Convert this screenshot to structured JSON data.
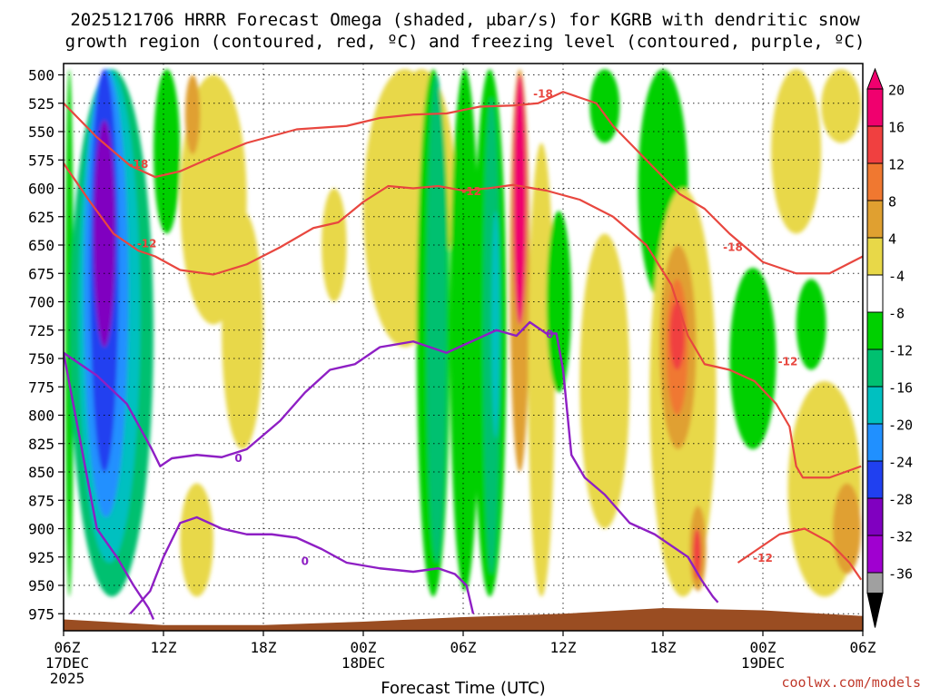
{
  "chart_data": {
    "type": "heatmap",
    "title_lines": [
      "2025121706 HRRR Forecast Omega (shaded, μbar/s) for KGRB with dendritic snow",
      "growth region (contoured, red, ºC) and freezing level (contoured, purple, ºC)"
    ],
    "xlabel": "Forecast Time (UTC)",
    "ylabel": "",
    "credit": "coolwx.com/models",
    "x_ticks": [
      {
        "hour": 0,
        "label": "06Z",
        "sub": "17DEC",
        "sub2": "2025"
      },
      {
        "hour": 6,
        "label": "12Z",
        "sub": "",
        "sub2": ""
      },
      {
        "hour": 12,
        "label": "18Z",
        "sub": "",
        "sub2": ""
      },
      {
        "hour": 18,
        "label": "00Z",
        "sub": "18DEC",
        "sub2": ""
      },
      {
        "hour": 24,
        "label": "06Z",
        "sub": "",
        "sub2": ""
      },
      {
        "hour": 30,
        "label": "12Z",
        "sub": "",
        "sub2": ""
      },
      {
        "hour": 36,
        "label": "18Z",
        "sub": "",
        "sub2": ""
      },
      {
        "hour": 42,
        "label": "00Z",
        "sub": "19DEC",
        "sub2": ""
      },
      {
        "hour": 48,
        "label": "06Z",
        "sub": "",
        "sub2": ""
      }
    ],
    "x_range_hours": [
      0,
      48
    ],
    "y_ticks_hpa": [
      500,
      525,
      550,
      575,
      600,
      625,
      650,
      675,
      700,
      725,
      750,
      775,
      800,
      825,
      850,
      875,
      900,
      925,
      950,
      975
    ],
    "y_range_hpa": [
      490,
      990
    ],
    "colorbar": {
      "labels": [
        "20",
        "16",
        "12",
        "8",
        "4",
        "-4",
        "-8",
        "-12",
        "-16",
        "-20",
        "-24",
        "-28",
        "-32",
        "-36"
      ],
      "bins": [
        {
          "color": "#f0006e"
        },
        {
          "color": "#f04040"
        },
        {
          "color": "#f07830"
        },
        {
          "color": "#e0a030"
        },
        {
          "color": "#e8d848"
        },
        {
          "color": "#ffffff"
        },
        {
          "color": "#00d000"
        },
        {
          "color": "#00c070"
        },
        {
          "color": "#00c0c0"
        },
        {
          "color": "#2090ff"
        },
        {
          "color": "#2040f0"
        },
        {
          "color": "#8000c0"
        },
        {
          "color": "#a000d0"
        },
        {
          "color": "#a0a0a0"
        }
      ]
    },
    "omega_features": [
      {
        "t0": 0.1,
        "t1": 0.6,
        "p0": 495,
        "p1": 960,
        "value": -8
      },
      {
        "t0": 0.4,
        "t1": 5.4,
        "p0": 495,
        "p1": 960,
        "value": -12
      },
      {
        "t0": 0.9,
        "t1": 4.6,
        "p0": 495,
        "p1": 930,
        "value": -16
      },
      {
        "t0": 1.2,
        "t1": 3.9,
        "p0": 495,
        "p1": 890,
        "value": -20
      },
      {
        "t0": 1.6,
        "t1": 3.3,
        "p0": 495,
        "p1": 850,
        "value": -24
      },
      {
        "t0": 1.8,
        "t1": 3.1,
        "p0": 540,
        "p1": 740,
        "value": -28
      },
      {
        "t0": 5.4,
        "t1": 7.0,
        "p0": 495,
        "p1": 640,
        "value": -8
      },
      {
        "t0": 7.0,
        "t1": 11.0,
        "p0": 500,
        "p1": 720,
        "value": 4
      },
      {
        "t0": 7.3,
        "t1": 8.2,
        "p0": 500,
        "p1": 570,
        "value": 8
      },
      {
        "t0": 7.0,
        "t1": 9.0,
        "p0": 860,
        "p1": 960,
        "value": 4
      },
      {
        "t0": 9.5,
        "t1": 12.0,
        "p0": 620,
        "p1": 830,
        "value": 4
      },
      {
        "t0": 15.5,
        "t1": 17.0,
        "p0": 600,
        "p1": 700,
        "value": 4
      },
      {
        "t0": 18.0,
        "t1": 23.0,
        "p0": 495,
        "p1": 740,
        "value": 4
      },
      {
        "t0": 19.5,
        "t1": 23.5,
        "p0": 495,
        "p1": 700,
        "value": 4
      },
      {
        "t0": 21.2,
        "t1": 23.2,
        "p0": 495,
        "p1": 960,
        "value": -8
      },
      {
        "t0": 21.8,
        "t1": 23.0,
        "p0": 500,
        "p1": 930,
        "value": -12
      },
      {
        "t0": 23.2,
        "t1": 25.0,
        "p0": 495,
        "p1": 955,
        "value": -8
      },
      {
        "t0": 24.6,
        "t1": 26.6,
        "p0": 495,
        "p1": 960,
        "value": -8
      },
      {
        "t0": 25.2,
        "t1": 26.2,
        "p0": 520,
        "p1": 940,
        "value": -12
      },
      {
        "t0": 25.7,
        "t1": 26.2,
        "p0": 620,
        "p1": 820,
        "value": -16
      },
      {
        "t0": 26.8,
        "t1": 28.0,
        "p0": 495,
        "p1": 850,
        "value": 8
      },
      {
        "t0": 27.0,
        "t1": 27.8,
        "p0": 500,
        "p1": 720,
        "value": 20
      },
      {
        "t0": 27.9,
        "t1": 29.5,
        "p0": 560,
        "p1": 960,
        "value": 4
      },
      {
        "t0": 29.0,
        "t1": 30.5,
        "p0": 620,
        "p1": 780,
        "value": -8
      },
      {
        "t0": 31.0,
        "t1": 34.0,
        "p0": 640,
        "p1": 900,
        "value": 4
      },
      {
        "t0": 31.6,
        "t1": 33.4,
        "p0": 495,
        "p1": 560,
        "value": -8
      },
      {
        "t0": 34.5,
        "t1": 37.5,
        "p0": 495,
        "p1": 700,
        "value": -8
      },
      {
        "t0": 35.2,
        "t1": 39.2,
        "p0": 600,
        "p1": 960,
        "value": 4
      },
      {
        "t0": 35.8,
        "t1": 38.0,
        "p0": 650,
        "p1": 830,
        "value": 8
      },
      {
        "t0": 36.2,
        "t1": 37.5,
        "p0": 680,
        "p1": 800,
        "value": 12
      },
      {
        "t0": 36.4,
        "t1": 37.3,
        "p0": 700,
        "p1": 760,
        "value": 16
      },
      {
        "t0": 37.6,
        "t1": 38.6,
        "p0": 880,
        "p1": 955,
        "value": 8
      },
      {
        "t0": 37.8,
        "t1": 38.3,
        "p0": 900,
        "p1": 945,
        "value": 16
      },
      {
        "t0": 40.0,
        "t1": 42.8,
        "p0": 670,
        "p1": 830,
        "value": -8
      },
      {
        "t0": 44.0,
        "t1": 45.8,
        "p0": 680,
        "p1": 760,
        "value": -8
      },
      {
        "t0": 42.5,
        "t1": 45.5,
        "p0": 495,
        "p1": 640,
        "value": 4
      },
      {
        "t0": 45.5,
        "t1": 47.9,
        "p0": 495,
        "p1": 560,
        "value": 4
      },
      {
        "t0": 43.5,
        "t1": 47.9,
        "p0": 770,
        "p1": 960,
        "value": 4
      },
      {
        "t0": 46.2,
        "t1": 47.9,
        "p0": 860,
        "p1": 940,
        "value": 8
      }
    ],
    "contours": [
      {
        "name": "-18C isotherm",
        "color": "#e8473f",
        "label": "-18",
        "times": [
          0,
          2,
          4,
          5.5,
          7,
          9,
          11,
          14,
          17,
          19,
          21,
          23,
          25,
          27,
          28.5,
          30,
          32,
          33,
          35,
          37,
          38.5,
          40,
          42,
          44,
          46,
          48
        ],
        "pres": [
          525,
          555,
          580,
          590,
          585,
          572,
          560,
          548,
          545,
          538,
          535,
          534,
          528,
          527,
          525,
          515,
          525,
          545,
          575,
          605,
          618,
          640,
          665,
          675,
          675,
          660
        ],
        "label_at": [
          [
            4.5,
            578
          ],
          [
            28.8,
            516
          ],
          [
            40.2,
            651
          ]
        ]
      },
      {
        "name": "-12C isotherm",
        "color": "#e8473f",
        "label": "-12",
        "times": [
          0,
          1.5,
          3,
          4.5,
          5.5,
          7,
          9,
          11,
          13,
          15,
          16.5,
          18,
          19.5,
          21,
          22.5,
          24,
          25.5,
          27,
          29,
          31,
          33,
          35,
          36.5,
          37.5,
          38.5,
          40,
          41.5,
          42.8,
          43.6,
          44,
          44.4,
          46,
          47.9
        ],
        "pres": [
          578,
          610,
          640,
          655,
          660,
          672,
          676,
          667,
          652,
          635,
          630,
          612,
          598,
          600,
          598,
          602,
          600,
          597,
          602,
          610,
          625,
          650,
          685,
          730,
          755,
          760,
          770,
          790,
          810,
          845,
          855,
          855,
          845
        ],
        "label_at": [
          [
            5.0,
            648
          ],
          [
            24.5,
            602
          ],
          [
            43.5,
            752
          ],
          [
            42.0,
            925
          ]
        ]
      },
      {
        "name": "-12C isotherm lower",
        "color": "#e8473f",
        "label": "",
        "times": [
          40.5,
          41.5,
          43,
          44.5,
          46,
          47.2,
          47.9
        ],
        "pres": [
          930,
          920,
          905,
          900,
          912,
          930,
          945
        ],
        "label_at": []
      },
      {
        "name": "0C freezing level",
        "color": "#8e1fc4",
        "label": "0",
        "times": [
          0,
          2,
          3.8,
          5.3,
          5.8,
          6.5,
          8,
          9.5,
          11,
          13,
          14.5,
          16,
          17.5,
          19,
          21,
          23,
          24.5,
          26,
          27.2,
          28,
          29,
          29.6,
          30,
          30.5,
          31.3,
          32.5,
          34,
          35.5,
          36.5,
          37.5,
          38.3,
          39.0,
          39.3
        ],
        "pres": [
          745,
          765,
          790,
          830,
          845,
          838,
          835,
          837,
          830,
          805,
          780,
          760,
          755,
          740,
          735,
          745,
          735,
          725,
          730,
          718,
          728,
          728,
          760,
          835,
          855,
          870,
          895,
          905,
          915,
          925,
          945,
          960,
          965
        ],
        "label_at": [
          [
            10.5,
            837
          ],
          [
            29.2,
            728
          ]
        ]
      },
      {
        "name": "0C freezing level lower",
        "color": "#8e1fc4",
        "label": "0",
        "times": [
          4.0,
          5.2,
          6.0,
          7.0,
          8.0,
          9.5,
          11,
          12.5,
          14,
          15.5,
          17,
          19,
          21,
          22.5,
          23.5,
          24.2,
          24.6
        ],
        "pres": [
          975,
          955,
          925,
          895,
          890,
          900,
          905,
          905,
          908,
          918,
          930,
          935,
          938,
          935,
          940,
          950,
          975
        ],
        "label_at": [
          [
            14.5,
            928
          ]
        ]
      },
      {
        "name": "0C early branch",
        "color": "#8e1fc4",
        "label": "",
        "times": [
          0,
          2.0,
          3.2,
          4.2,
          5.1,
          5.4
        ],
        "pres": [
          745,
          900,
          925,
          950,
          970,
          980
        ],
        "label_at": []
      }
    ],
    "terrain_surface_hpa": [
      {
        "t": 0,
        "p": 980
      },
      {
        "t": 6,
        "p": 985
      },
      {
        "t": 12,
        "p": 985
      },
      {
        "t": 18,
        "p": 982
      },
      {
        "t": 24,
        "p": 978
      },
      {
        "t": 30,
        "p": 975
      },
      {
        "t": 36,
        "p": 970
      },
      {
        "t": 42,
        "p": 972
      },
      {
        "t": 48,
        "p": 977
      }
    ]
  }
}
